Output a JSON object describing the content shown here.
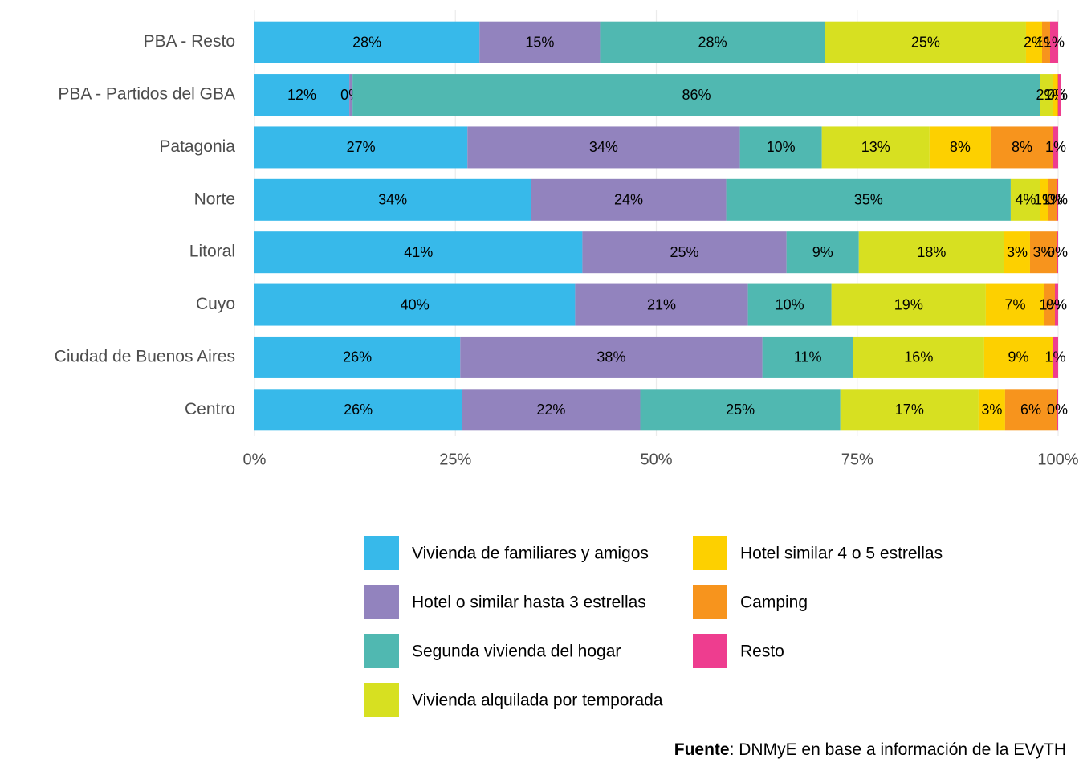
{
  "chart_data": {
    "type": "stacked_barh",
    "categories": [
      "PBA - Resto",
      "PBA - Partidos del GBA",
      "Patagonia",
      "Norte",
      "Litoral",
      "Cuyo",
      "Ciudad de Buenos Aires",
      "Centro"
    ],
    "series": [
      {
        "name": "Vivienda de familiares y amigos",
        "color": "#37b9ea",
        "values": [
          28,
          11.8,
          26.5,
          34.4,
          40.8,
          39.9,
          25.6,
          25.8
        ],
        "value_labels": [
          "28%",
          "12%",
          "27%",
          "34%",
          "41%",
          "40%",
          "26%",
          "26%"
        ]
      },
      {
        "name": "Hotel o similar hasta 3 estrellas",
        "color": "#9283be",
        "values": [
          15,
          0.4,
          33.9,
          24.3,
          25.4,
          21.5,
          37.6,
          22.2
        ],
        "value_labels": [
          "15%",
          "0%",
          "34%",
          "24%",
          "25%",
          "21%",
          "38%",
          "22%"
        ]
      },
      {
        "name": "Segunda vivienda del hogar",
        "color": "#50b8b1",
        "values": [
          28,
          85.6,
          10.2,
          35.4,
          9.0,
          10.4,
          11.3,
          24.9
        ],
        "value_labels": [
          "28%",
          "86%",
          "10%",
          "35%",
          "9%",
          "10%",
          "11%",
          "25%"
        ]
      },
      {
        "name": "Vivienda alquilada por temporada",
        "color": "#d7e021",
        "values": [
          25,
          1.5,
          13.4,
          3.7,
          18.1,
          19.2,
          16.3,
          17.2
        ],
        "value_labels": [
          "25%",
          "2%",
          "13%",
          "4%",
          "18%",
          "19%",
          "16%",
          "17%"
        ]
      },
      {
        "name": "Hotel similar 4 o 5 estrellas",
        "color": "#fdd000",
        "values": [
          2,
          0.5,
          7.6,
          1.0,
          3.2,
          7.3,
          8.5,
          3.3
        ],
        "value_labels": [
          "2%",
          "1%",
          "8%",
          "1%",
          "3%",
          "7%",
          "9%",
          "3%"
        ]
      },
      {
        "name": "Camping",
        "color": "#f7941d",
        "values": [
          1,
          0.2,
          7.8,
          1.0,
          3.3,
          1.3,
          0,
          6.4
        ],
        "value_labels": [
          "1%",
          "0%",
          "8%",
          "1%",
          "3%",
          "1%",
          null,
          "6%"
        ]
      },
      {
        "name": "Resto",
        "color": "#ee3d8f",
        "values": [
          1,
          0.4,
          0.6,
          0.2,
          0.2,
          0.4,
          0.7,
          0.2
        ],
        "value_labels": [
          "1%",
          null,
          "1%",
          "0%",
          "0%",
          "0%",
          "1%",
          "0%"
        ]
      }
    ],
    "xlim": [
      0,
      100
    ],
    "xticks": [
      {
        "value": 0,
        "label": "0%"
      },
      {
        "value": 25,
        "label": "25%"
      },
      {
        "value": 50,
        "label": "50%"
      },
      {
        "value": 75,
        "label": "75%"
      },
      {
        "value": 100,
        "label": "100%"
      }
    ],
    "grid": true,
    "caption_bold": "Fuente",
    "caption": ": DNMyE en base a información de la EVyTH"
  }
}
